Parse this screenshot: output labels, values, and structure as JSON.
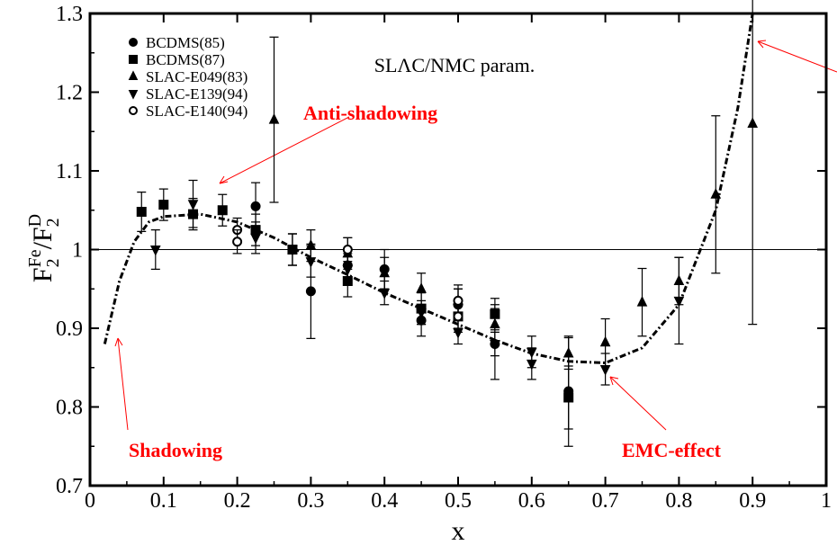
{
  "chart_data": {
    "type": "scatter",
    "xlabel": "x",
    "ylabel": [
      "F",
      "2",
      "Fe",
      "/F",
      "2",
      "D"
    ],
    "xlim": [
      0,
      1
    ],
    "ylim": [
      0.7,
      1.3
    ],
    "xticks": [
      0,
      0.1,
      0.2,
      0.3,
      0.4,
      0.5,
      0.6,
      0.7,
      0.8,
      0.9,
      1
    ],
    "yticks": [
      0.7,
      0.8,
      0.9,
      1,
      1.1,
      1.2,
      1.3
    ],
    "hline": 1,
    "legend": "upper-left",
    "series": [
      {
        "name": "BCDMS(85)",
        "marker": "circle",
        "color": "#000000",
        "x": [
          0.225,
          0.275,
          0.3,
          0.35,
          0.4,
          0.45,
          0.5,
          0.55,
          0.65
        ],
        "values": [
          1.055,
          1.0,
          0.947,
          0.98,
          0.975,
          0.91,
          0.93,
          0.88,
          0.82
        ],
        "errors": [
          0.03,
          0.02,
          0.06,
          0.02,
          0.025,
          0.02,
          0.02,
          0.045,
          0.07
        ]
      },
      {
        "name": "BCDMS(87)",
        "marker": "square",
        "color": "#000000",
        "x": [
          0.07,
          0.1,
          0.14,
          0.18,
          0.225,
          0.275,
          0.35,
          0.45,
          0.5,
          0.55,
          0.65
        ],
        "values": [
          1.048,
          1.057,
          1.045,
          1.05,
          1.025,
          1.0,
          0.96,
          0.925,
          0.915,
          0.918,
          0.812
        ],
        "errors": [
          0.025,
          0.02,
          0.02,
          0.02,
          0.02,
          0.02,
          0.02,
          0.02,
          0.02,
          0.02,
          0.04
        ]
      },
      {
        "name": "SLAC-E049(83)",
        "marker": "triangle-up",
        "color": "#000000",
        "x": [
          0.25,
          0.3,
          0.35,
          0.4,
          0.45,
          0.5,
          0.55,
          0.65,
          0.7,
          0.75,
          0.8,
          0.85,
          0.9
        ],
        "values": [
          1.165,
          1.005,
          0.995,
          0.97,
          0.95,
          0.935,
          0.905,
          0.868,
          0.882,
          0.933,
          0.96,
          1.07,
          1.16
        ],
        "errors": [
          0.105,
          0.02,
          0.02,
          0.02,
          0.02,
          0.02,
          0.025,
          0.02,
          0.03,
          0.043,
          0.03,
          0.1,
          0.255
        ]
      },
      {
        "name": "SLAC-E139(94)",
        "marker": "triangle-down",
        "color": "#000000",
        "x": [
          0.089,
          0.14,
          0.225,
          0.275,
          0.3,
          0.35,
          0.4,
          0.45,
          0.5,
          0.55,
          0.6,
          0.6,
          0.7,
          0.8
        ],
        "values": [
          1.0,
          1.058,
          1.015,
          1.0,
          0.985,
          0.975,
          0.945,
          0.92,
          0.895,
          0.88,
          0.87,
          0.855,
          0.848,
          0.935
        ],
        "errors": [
          0.025,
          0.03,
          0.02,
          0.02,
          0.02,
          0.02,
          0.015,
          0.015,
          0.015,
          0.015,
          0.02,
          0.02,
          0.02,
          0.055
        ]
      },
      {
        "name": "SLAC-E140(94)",
        "marker": "open-circle",
        "color": "#000000",
        "x": [
          0.2,
          0.2,
          0.35,
          0.5,
          0.5
        ],
        "values": [
          1.025,
          1.01,
          1.0,
          0.935,
          0.915
        ],
        "errors": [
          0.015,
          0.015,
          0.015,
          0.015,
          0.015
        ]
      }
    ],
    "curve": {
      "name": "SLΛC/NMC param.",
      "color": "#000000",
      "x": [
        0.02,
        0.04,
        0.06,
        0.08,
        0.1,
        0.15,
        0.2,
        0.25,
        0.3,
        0.35,
        0.4,
        0.45,
        0.5,
        0.55,
        0.6,
        0.65,
        0.7,
        0.75,
        0.8,
        0.85,
        0.88,
        0.9
      ],
      "values": [
        0.88,
        0.96,
        1.01,
        1.035,
        1.042,
        1.045,
        1.035,
        1.015,
        0.99,
        0.968,
        0.945,
        0.925,
        0.905,
        0.885,
        0.868,
        0.858,
        0.856,
        0.875,
        0.93,
        1.05,
        1.18,
        1.3
      ]
    },
    "annotations": [
      {
        "text": "Anti-shadowing",
        "color": "#ff0000"
      },
      {
        "text": "Shadowing",
        "color": "#ff0000"
      },
      {
        "text": "EMC-effect",
        "color": "#ff0000"
      }
    ]
  }
}
